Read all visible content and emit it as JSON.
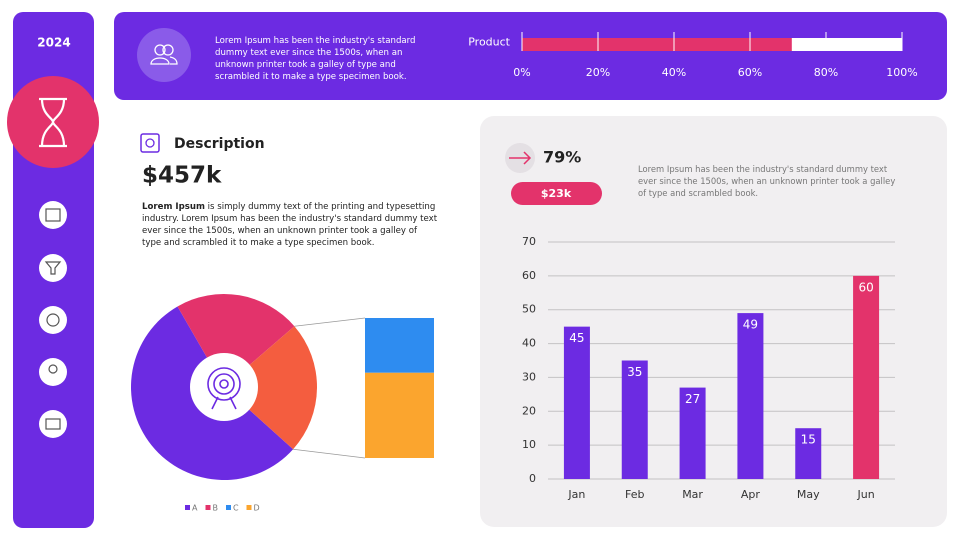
{
  "sidebar": {
    "year": "2024"
  },
  "banner": {
    "text": "Lorem Ipsum has been the industry's standard dummy text ever since the 1500s, when an unknown printer took a galley of type and scrambled it to make a type specimen book."
  },
  "description": {
    "title": "Description",
    "amount": "$457k",
    "lead": "Lorem Ipsum",
    "text": "is simply dummy text of the printing and typesetting industry. Lorem Ipsum has been the industry's standard dummy text ever since the 1500s, when an unknown printer took a galley of type and scrambled it to make a type specimen book."
  },
  "summary": {
    "percent": "79%",
    "amount": "$23k",
    "text": "Lorem Ipsum has been the industry's standard dummy text ever since the 1500s, when an unknown printer took a galley of type and scrambled book."
  },
  "chart_data": [
    {
      "type": "bar",
      "orientation": "horizontal",
      "categories": [
        "Product"
      ],
      "values": [
        71
      ],
      "color": "#e3336b",
      "track_color": "#ffffff",
      "xlim": [
        0,
        100
      ],
      "xticks": [
        {
          "value": 0,
          "label": "0%"
        },
        {
          "value": 20,
          "label": "20%"
        },
        {
          "value": 40,
          "label": "40%"
        },
        {
          "value": 60,
          "label": "60%"
        },
        {
          "value": 80,
          "label": "80%"
        },
        {
          "value": 100,
          "label": "100%"
        }
      ]
    },
    {
      "type": "bar_of_pie",
      "categories": [
        "A",
        "B",
        "C",
        "D"
      ],
      "values": [
        55,
        22,
        9,
        14
      ],
      "colors": [
        "#6c2be2",
        "#e3336b",
        "#2e8cf0",
        "#fba52e"
      ],
      "secondary_count": 2,
      "other_color": "#f45d3f"
    },
    {
      "type": "bar",
      "orientation": "vertical",
      "categories": [
        "Jan",
        "Feb",
        "Mar",
        "Apr",
        "May",
        "Jun"
      ],
      "values": [
        45,
        35,
        27,
        49,
        15,
        60
      ],
      "colors": [
        "#6c2be2",
        "#6c2be2",
        "#6c2be2",
        "#6c2be2",
        "#6c2be2",
        "#e3336b"
      ],
      "ylim": [
        0,
        70
      ],
      "yticks": [
        0,
        10,
        20,
        30,
        40,
        50,
        60,
        70
      ],
      "grid": true
    }
  ]
}
